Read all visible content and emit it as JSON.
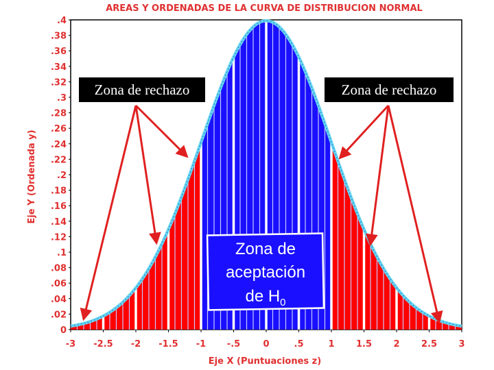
{
  "chart_data": {
    "type": "area",
    "title": "AREAS Y ORDENADAS DE LA CURVA DE DISTRIBUCION NORMAL",
    "xlabel": "Eje X (Puntuaciones z)",
    "ylabel": "Eje Y (Ordenada y)",
    "xlim": [
      -3,
      3
    ],
    "ylim": [
      0,
      0.4
    ],
    "x_ticks": [
      "-3",
      "-2.5",
      "-2",
      "-1.5",
      "-1",
      "-.5",
      "0",
      ".5",
      "1",
      "1.5",
      "2",
      "2.5",
      "3"
    ],
    "y_ticks": [
      "0",
      ".02",
      ".04",
      ".06",
      ".08",
      ".1",
      ".12",
      ".14",
      ".16",
      ".18",
      ".2",
      ".22",
      ".24",
      ".26",
      ".28",
      ".3",
      ".32",
      ".34",
      ".36",
      ".38",
      ".4"
    ],
    "curve": "standard normal density",
    "x_range": [
      -3,
      3
    ],
    "regions": [
      {
        "name": "rejection-left",
        "from": -3,
        "to": -1,
        "color": "#ff0000"
      },
      {
        "name": "acceptance",
        "from": -1,
        "to": 1,
        "color": "#1a10ff"
      },
      {
        "name": "rejection-right",
        "from": 1,
        "to": 3,
        "color": "#ff0000"
      }
    ],
    "curve_color": "#66d8f0",
    "grid": false,
    "annotations": {
      "left_box": "Zona de rechazo",
      "right_box": "Zona de rechazo",
      "center_line1": "Zona de",
      "center_line2": "aceptación",
      "center_line3_prefix": "de H",
      "center_line3_sub": "0"
    }
  }
}
